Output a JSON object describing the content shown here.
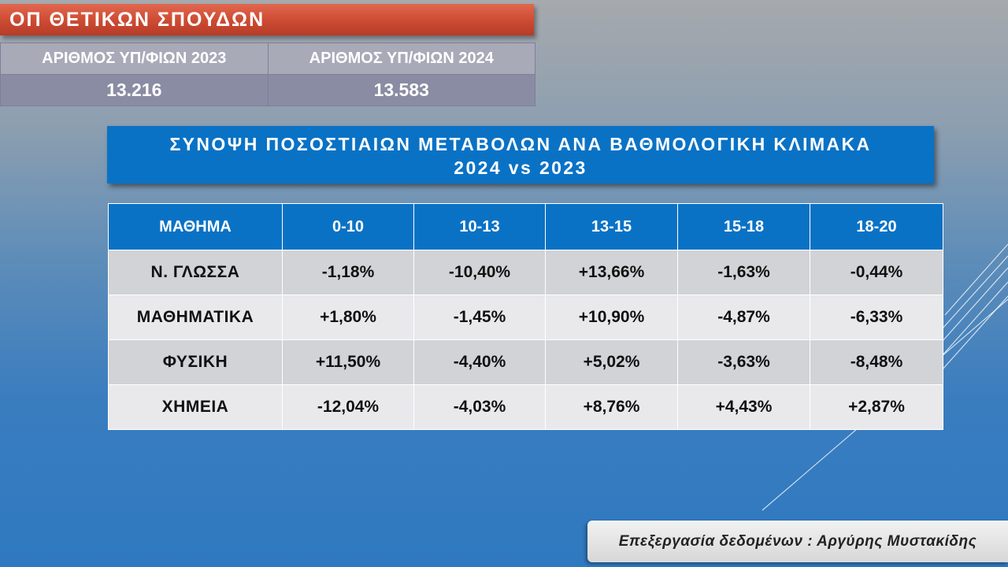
{
  "header": {
    "title": "ΟΠ ΘΕΤΙΚΩΝ ΣΠΟΥΔΩΝ"
  },
  "stats": {
    "headers": [
      "ΑΡΙΘΜΟΣ ΥΠ/ΦΙΩΝ 2023",
      "ΑΡΙΘΜΟΣ ΥΠ/ΦΙΩΝ 2024"
    ],
    "values": [
      "13.216",
      "13.583"
    ]
  },
  "banner": {
    "line1": "ΣΥΝΟΨΗ ΠΟΣΟΣΤΙΑΙΩΝ ΜΕΤΑΒΟΛΩΝ ΑΝΑ ΒΑΘΜΟΛΟΓΙΚΗ ΚΛΙΜΑΚΑ",
    "line2": "2024 vs 2023"
  },
  "table": {
    "columns": [
      "ΜΑΘΗΜΑ",
      "0-10",
      "10-13",
      "13-15",
      "15-18",
      "18-20"
    ],
    "rows": [
      [
        "Ν. ΓΛΩΣΣΑ",
        "-1,18%",
        "-10,40%",
        "+13,66%",
        "-1,63%",
        "-0,44%"
      ],
      [
        "ΜΑΘΗΜΑΤΙΚΑ",
        "+1,80%",
        "-1,45%",
        "+10,90%",
        "-4,87%",
        "-6,33%"
      ],
      [
        "ΦΥΣΙΚΗ",
        "+11,50%",
        "-4,40%",
        "+5,02%",
        "-3,63%",
        "-8,48%"
      ],
      [
        "ΧΗΜΕΙΑ",
        "-12,04%",
        "-4,03%",
        "+8,76%",
        "+4,43%",
        "+2,87%"
      ]
    ]
  },
  "credit": {
    "text": "Επεξεργασία δεδομένων : Αργύρης Μυστακίδης"
  },
  "colors": {
    "header_red": "#cc4a32",
    "banner_blue": "#0a72c5",
    "row_odd": "#d2d3d6",
    "row_even": "#e9e9ec"
  }
}
